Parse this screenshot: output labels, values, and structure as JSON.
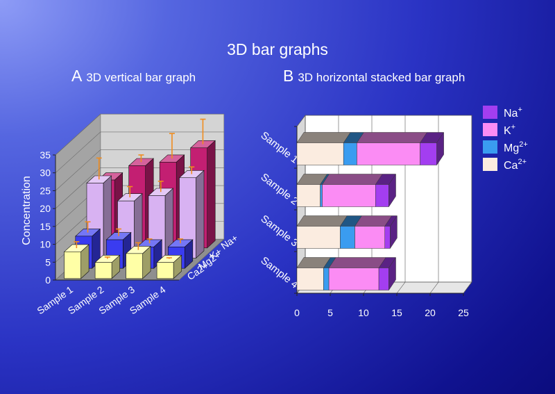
{
  "title": "3D bar graphs",
  "panel_a": {
    "letter": "A",
    "caption": "3D vertical bar graph"
  },
  "panel_b": {
    "letter": "B",
    "caption": "3D horizontal stacked bar graph"
  },
  "colors": {
    "Na+": "#c31f72",
    "K+": "#d8b2f2",
    "Mg2+": "#3a3cf0",
    "Ca2+": "#ffffa6",
    "b_Na+": "#a33ef0",
    "b_K+": "#fb8cf4",
    "b_Mg2+": "#3a9cf0",
    "b_Ca2+": "#fbece0",
    "error_bar": "#f08c1e"
  },
  "chart_data": [
    {
      "type": "bar",
      "categories": [
        "Sample 1",
        "Sample 2",
        "Sample 3",
        "Sample 4"
      ],
      "series": [
        {
          "name": "Ca2+",
          "values": [
            7.5,
            4.5,
            7,
            4.5
          ],
          "errors": [
            1.8,
            0.5,
            2,
            0.3
          ]
        },
        {
          "name": "Mg2+",
          "values": [
            9,
            8,
            6,
            6
          ],
          "errors": [
            3,
            2,
            1.2,
            1.2
          ]
        },
        {
          "name": "K+",
          "values": [
            21,
            16,
            17.5,
            22.5
          ],
          "errors": [
            6,
            3,
            3,
            2
          ]
        },
        {
          "name": "Na+",
          "values": [
            19,
            23,
            24,
            28
          ],
          "errors": [
            0,
            2,
            7,
            7
          ]
        }
      ],
      "ylabel": "Concentration",
      "ylim": [
        0,
        35
      ],
      "yticks": [
        0,
        5,
        10,
        15,
        20,
        25,
        30,
        35
      ]
    },
    {
      "type": "bar",
      "orientation": "horizontal",
      "stacked": true,
      "categories": [
        "Sample 1",
        "Sample 2",
        "Sample 3",
        "Sample 4"
      ],
      "series": [
        {
          "name": "Ca2+",
          "values": [
            7,
            3.5,
            6.5,
            4
          ]
        },
        {
          "name": "Mg2+",
          "values": [
            2,
            0.3,
            2.2,
            0.8
          ]
        },
        {
          "name": "K+",
          "values": [
            9.5,
            8,
            4.5,
            7.5
          ]
        },
        {
          "name": "Na+",
          "values": [
            2.5,
            2,
            0.8,
            1.5
          ]
        }
      ],
      "xlim": [
        0,
        25
      ],
      "xticks": [
        0,
        5,
        10,
        15,
        20,
        25
      ],
      "legend": {
        "position": "right",
        "entries": [
          {
            "series": "Na+",
            "base": "Na",
            "sup": "+"
          },
          {
            "series": "K+",
            "base": "K",
            "sup": "+"
          },
          {
            "series": "Mg2+",
            "base": "Mg",
            "sup": "2+"
          },
          {
            "series": "Ca2+",
            "base": "Ca",
            "sup": "2+"
          }
        ]
      }
    }
  ]
}
